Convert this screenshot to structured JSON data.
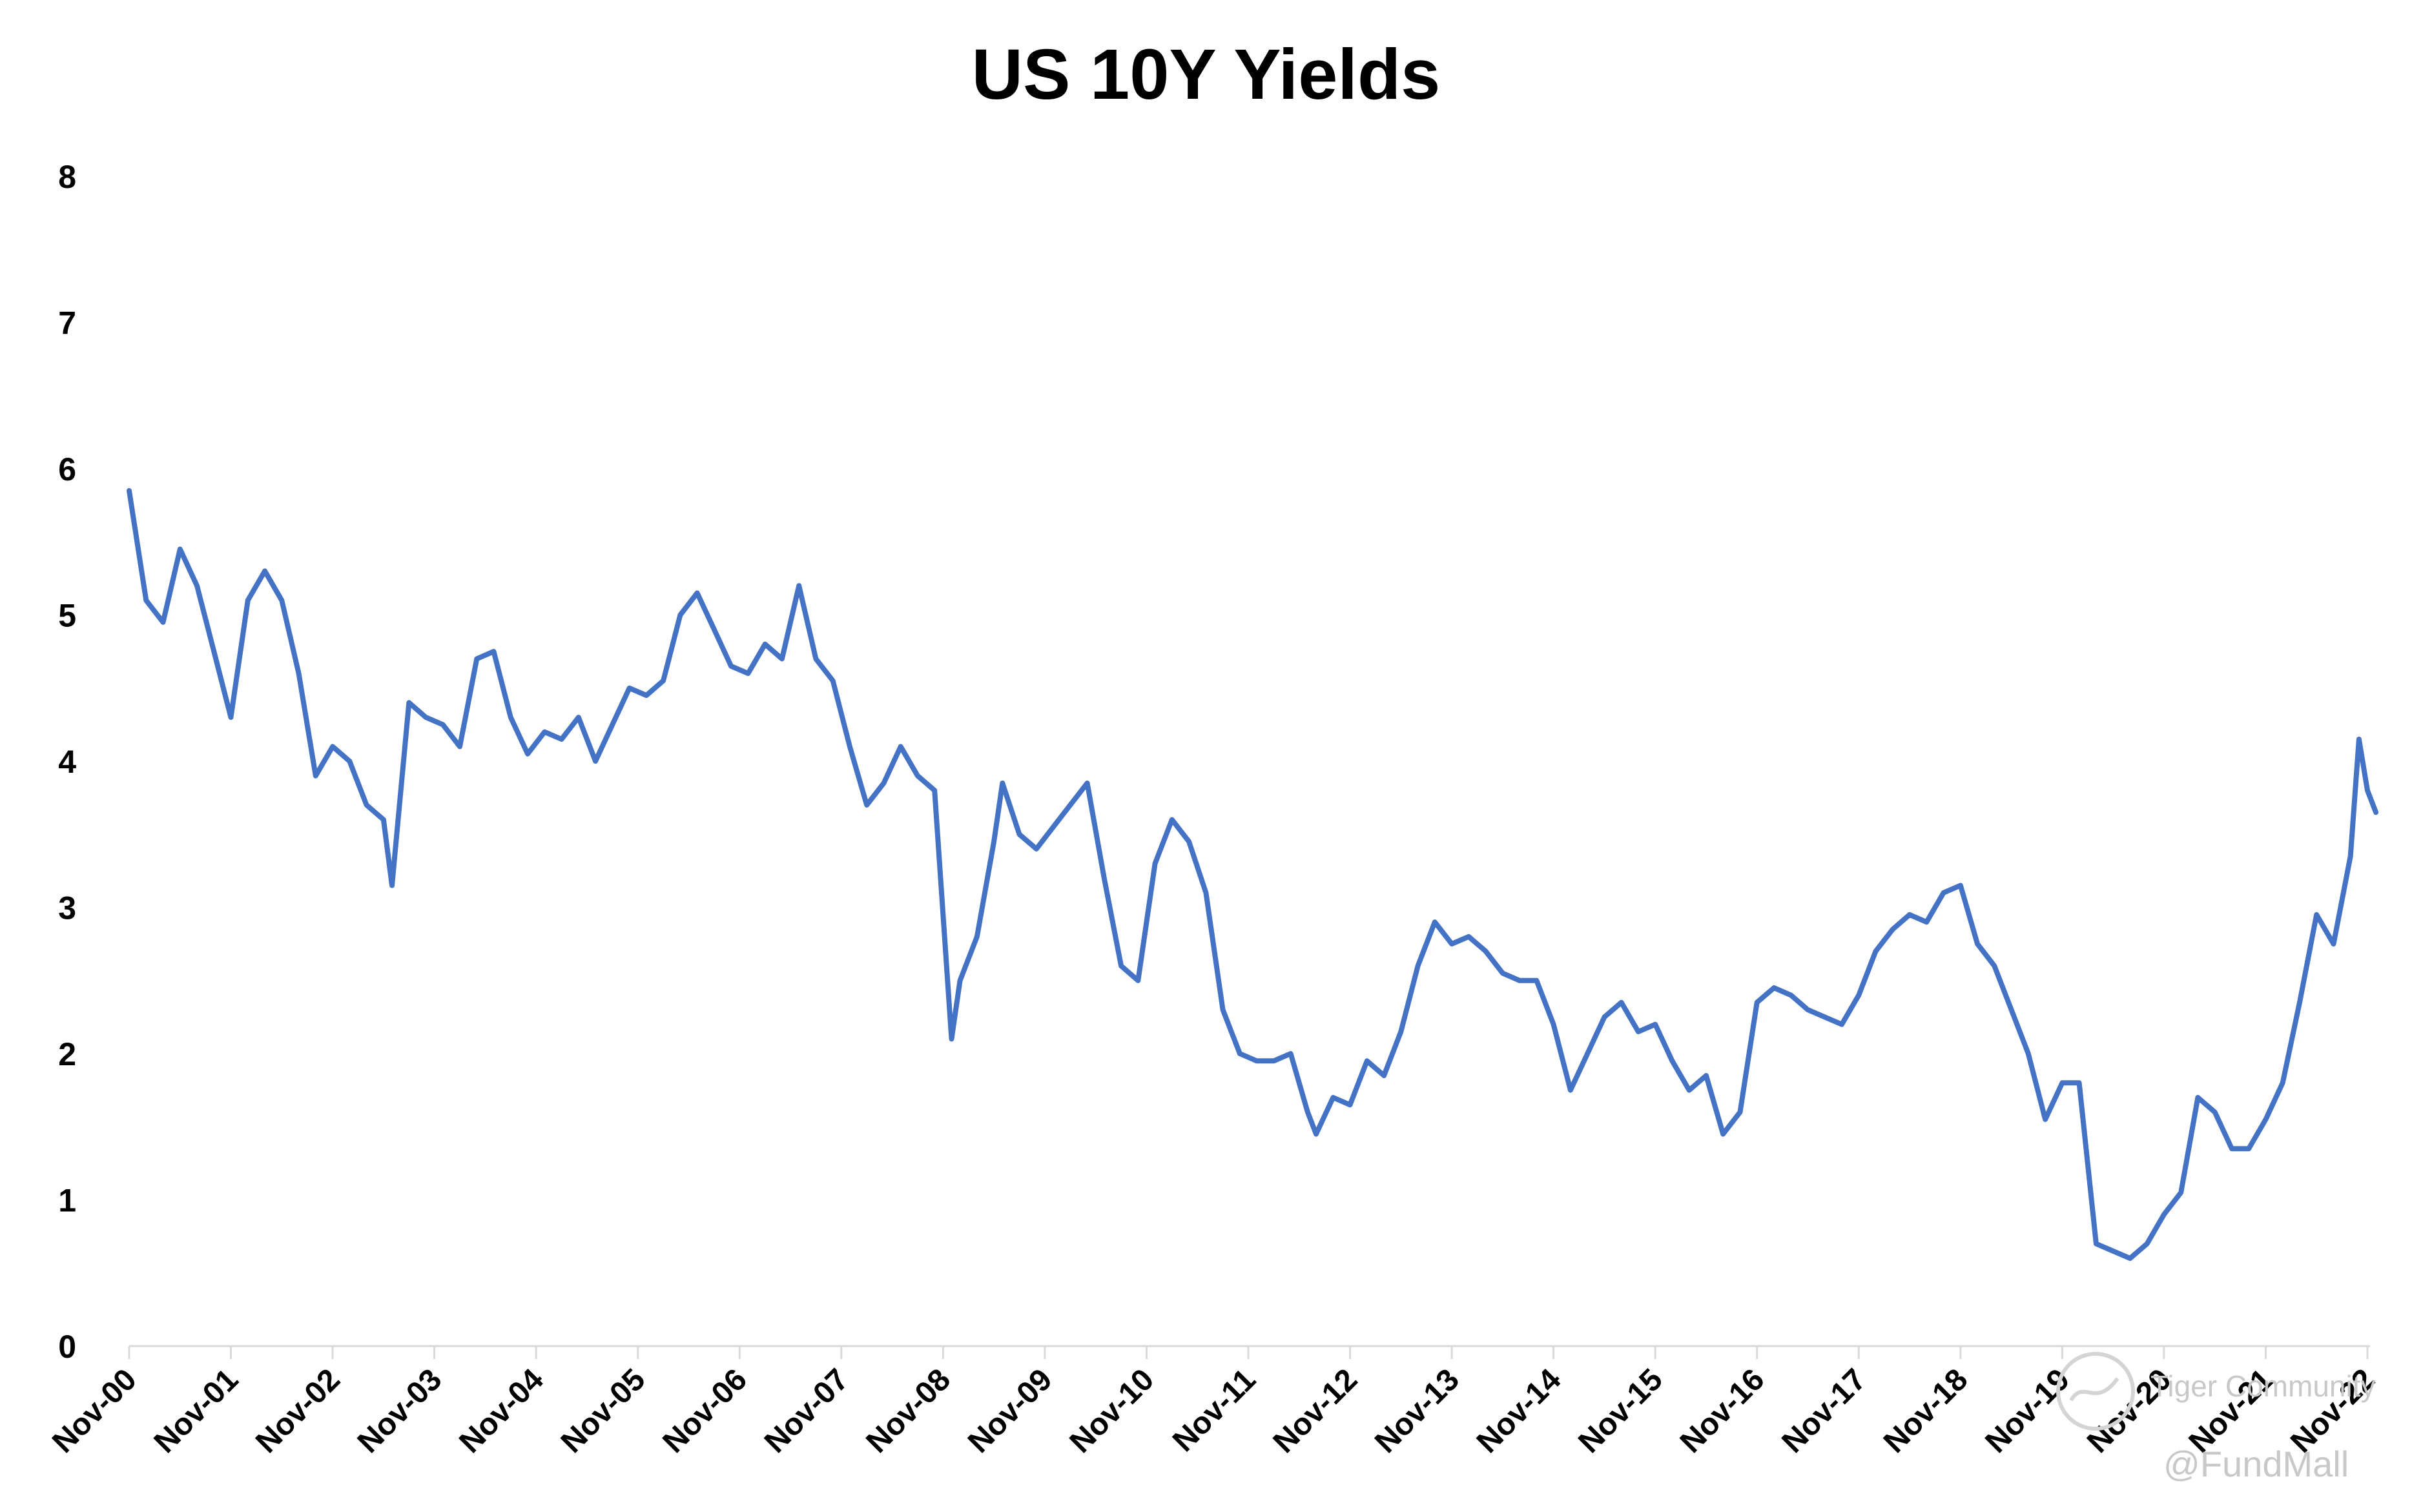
{
  "chart_data": {
    "type": "line",
    "title": "US 10Y Yields",
    "xlabel": "",
    "ylabel": "",
    "ylim": [
      0,
      8
    ],
    "yticks": [
      "0",
      "1",
      "2",
      "3",
      "4",
      "5",
      "6",
      "7",
      "8"
    ],
    "xticks": [
      "Nov-00",
      "Nov-01",
      "Nov-02",
      "Nov-03",
      "Nov-04",
      "Nov-05",
      "Nov-06",
      "Nov-07",
      "Nov-08",
      "Nov-09",
      "Nov-10",
      "Nov-11",
      "Nov-12",
      "Nov-13",
      "Nov-14",
      "Nov-15",
      "Nov-16",
      "Nov-17",
      "Nov-18",
      "Nov-19",
      "Nov-20",
      "Nov-21",
      "Nov-22"
    ],
    "grid": false,
    "legend": "none",
    "line_color": "#4472c4",
    "series": [
      {
        "x": [
          "2000-11",
          "2001-01",
          "2001-03",
          "2001-05",
          "2001-07",
          "2001-09",
          "2001-11",
          "2002-01",
          "2002-03",
          "2002-05",
          "2002-07",
          "2002-09",
          "2002-11",
          "2003-01",
          "2003-03",
          "2003-05",
          "2003-06",
          "2003-08",
          "2003-10",
          "2003-12",
          "2004-02",
          "2004-04",
          "2004-06",
          "2004-08",
          "2004-10",
          "2004-12",
          "2005-02",
          "2005-04",
          "2005-06",
          "2005-08",
          "2005-10",
          "2005-12",
          "2006-02",
          "2006-04",
          "2006-06",
          "2006-08",
          "2006-10",
          "2006-12",
          "2007-02",
          "2007-04",
          "2007-06",
          "2007-08",
          "2007-10",
          "2007-12",
          "2008-02",
          "2008-04",
          "2008-06",
          "2008-08",
          "2008-10",
          "2008-12",
          "2009-01",
          "2009-03",
          "2009-05",
          "2009-06",
          "2009-08",
          "2009-10",
          "2009-12",
          "2010-02",
          "2010-04",
          "2010-06",
          "2010-08",
          "2010-10",
          "2010-12",
          "2011-02",
          "2011-04",
          "2011-06",
          "2011-08",
          "2011-10",
          "2011-12",
          "2012-02",
          "2012-04",
          "2012-06",
          "2012-07",
          "2012-09",
          "2012-11",
          "2013-01",
          "2013-03",
          "2013-05",
          "2013-07",
          "2013-09",
          "2013-11",
          "2014-01",
          "2014-03",
          "2014-05",
          "2014-07",
          "2014-09",
          "2014-11",
          "2015-01",
          "2015-03",
          "2015-05",
          "2015-07",
          "2015-09",
          "2015-11",
          "2016-01",
          "2016-03",
          "2016-05",
          "2016-07",
          "2016-09",
          "2016-11",
          "2017-01",
          "2017-03",
          "2017-05",
          "2017-07",
          "2017-09",
          "2017-11",
          "2018-01",
          "2018-03",
          "2018-05",
          "2018-07",
          "2018-09",
          "2018-11",
          "2019-01",
          "2019-03",
          "2019-05",
          "2019-07",
          "2019-09",
          "2019-11",
          "2020-01",
          "2020-03",
          "2020-05",
          "2020-07",
          "2020-09",
          "2020-11",
          "2021-01",
          "2021-03",
          "2021-05",
          "2021-07",
          "2021-09",
          "2021-11",
          "2022-01",
          "2022-03",
          "2022-05",
          "2022-07",
          "2022-09",
          "2022-10",
          "2022-11",
          "2022-12"
        ],
        "y": [
          5.85,
          5.1,
          4.95,
          5.45,
          5.2,
          4.75,
          4.3,
          5.1,
          5.3,
          5.1,
          4.6,
          3.9,
          4.1,
          4.0,
          3.7,
          3.6,
          3.15,
          4.4,
          4.3,
          4.25,
          4.1,
          4.7,
          4.75,
          4.3,
          4.05,
          4.2,
          4.15,
          4.3,
          4.0,
          4.25,
          4.5,
          4.45,
          4.55,
          5.0,
          5.15,
          4.9,
          4.65,
          4.6,
          4.8,
          4.7,
          5.2,
          4.7,
          4.55,
          4.1,
          3.7,
          3.85,
          4.1,
          3.9,
          3.8,
          2.1,
          2.5,
          2.8,
          3.45,
          3.85,
          3.5,
          3.4,
          3.55,
          3.7,
          3.85,
          3.2,
          2.6,
          2.5,
          3.3,
          3.6,
          3.45,
          3.1,
          2.3,
          2.0,
          1.95,
          1.95,
          2.0,
          1.6,
          1.45,
          1.7,
          1.65,
          1.95,
          1.85,
          2.15,
          2.6,
          2.9,
          2.75,
          2.8,
          2.7,
          2.55,
          2.5,
          2.5,
          2.2,
          1.75,
          2.0,
          2.25,
          2.35,
          2.15,
          2.2,
          1.95,
          1.75,
          1.85,
          1.45,
          1.6,
          2.35,
          2.45,
          2.4,
          2.3,
          2.25,
          2.2,
          2.4,
          2.7,
          2.85,
          2.95,
          2.9,
          3.1,
          3.15,
          2.75,
          2.6,
          2.3,
          2.0,
          1.55,
          1.8,
          1.8,
          0.7,
          0.65,
          0.6,
          0.7,
          0.9,
          1.05,
          1.7,
          1.6,
          1.35,
          1.35,
          1.55,
          1.8,
          2.35,
          2.95,
          2.75,
          3.35,
          4.15,
          3.8,
          3.65
        ]
      }
    ]
  },
  "watermark": {
    "line1": "Tiger Community",
    "line2": "@FundMall"
  }
}
